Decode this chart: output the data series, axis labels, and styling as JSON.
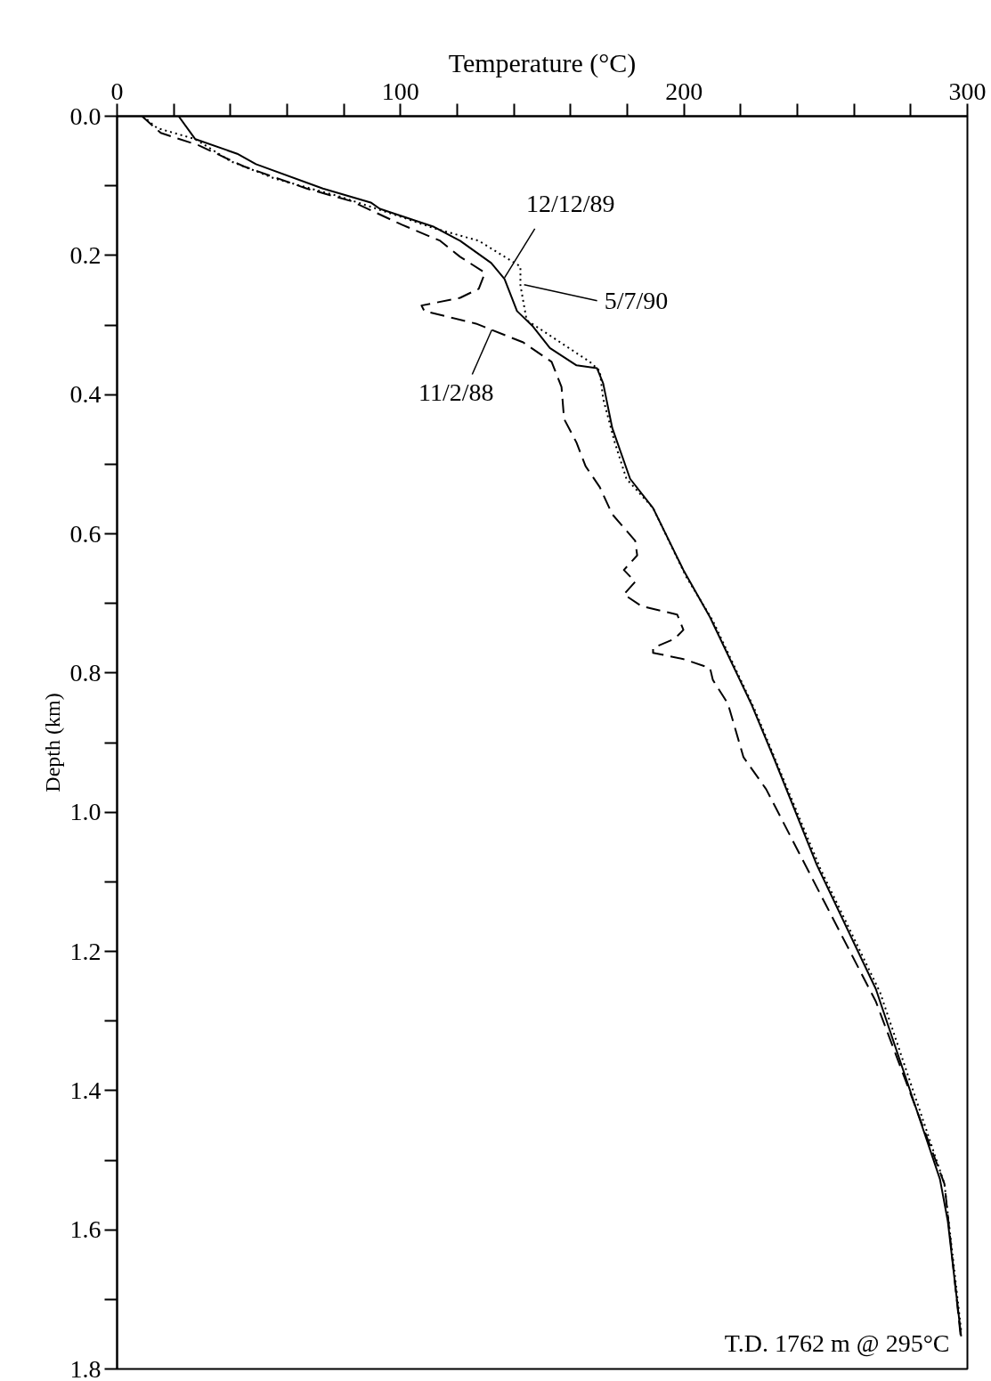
{
  "chart_data": {
    "type": "line",
    "xlabel": "Temperature (°C)",
    "ylabel": "Depth (km)",
    "xlim": [
      0,
      300
    ],
    "ylim": [
      1.8,
      0.0
    ],
    "xticks": [
      0,
      {
        "value": 20,
        "label": null
      },
      {
        "value": 40,
        "label": null
      },
      {
        "value": 60,
        "label": null
      },
      {
        "value": 80,
        "label": null
      },
      100,
      {
        "value": 120,
        "label": null
      },
      {
        "value": 140,
        "label": null
      },
      {
        "value": 160,
        "label": null
      },
      {
        "value": 180,
        "label": null
      },
      200,
      {
        "value": 220,
        "label": null
      },
      {
        "value": 240,
        "label": null
      },
      {
        "value": 260,
        "label": null
      },
      {
        "value": 280,
        "label": null
      },
      300
    ],
    "yticks": [
      {
        "value": 0.0,
        "label": "0.0"
      },
      {
        "value": 0.1,
        "label": null
      },
      0.2,
      {
        "value": 0.3,
        "label": null
      },
      0.4,
      {
        "value": 0.5,
        "label": null
      },
      0.6,
      {
        "value": 0.7,
        "label": null
      },
      0.8,
      {
        "value": 0.9,
        "label": null
      },
      {
        "value": 1.0,
        "label": "1.0"
      },
      {
        "value": 1.1,
        "label": null
      },
      1.2,
      {
        "value": 1.3,
        "label": null
      },
      1.4,
      {
        "value": 1.5,
        "label": null
      },
      1.6,
      {
        "value": 1.7,
        "label": null
      },
      1.8
    ],
    "series": [
      {
        "color": "#000000",
        "line_style": "solid",
        "x": [
          21.7,
          27.6,
          42.4,
          49.0,
          72.6,
          89.5,
          92.7,
          111.8,
          121.0,
          132.0,
          136.7,
          141.1,
          146.7,
          152.7,
          162.1,
          169.3,
          171.5,
          174.7,
          181.0,
          189.1,
          199.8,
          209.2,
          223.7,
          231.9,
          246.9,
          267.7,
          290.3,
          293.1,
          297.8
        ],
        "values": [
          0.0,
          0.033,
          0.054,
          0.069,
          0.104,
          0.124,
          0.133,
          0.159,
          0.179,
          0.211,
          0.234,
          0.28,
          0.302,
          0.333,
          0.358,
          0.362,
          0.384,
          0.448,
          0.521,
          0.563,
          0.652,
          0.72,
          0.844,
          0.924,
          1.076,
          1.254,
          1.527,
          1.588,
          1.753
        ]
      },
      {
        "color": "#000000",
        "line_style": "dotted",
        "x": [
          9.1,
          14.1,
          27.6,
          40.2,
          55.9,
          78.2,
          100.5,
          111.8,
          127.6,
          142.3,
          142.3,
          144.5,
          166.8,
          170.3,
          171.5,
          175.6,
          179.7,
          189.1,
          200.7,
          210.2,
          225.0,
          248.2,
          269.2,
          291.9,
          297.8
        ],
        "values": [
          0.0,
          0.017,
          0.033,
          0.065,
          0.09,
          0.115,
          0.145,
          0.161,
          0.179,
          0.216,
          0.243,
          0.293,
          0.353,
          0.366,
          0.406,
          0.469,
          0.521,
          0.563,
          0.661,
          0.725,
          0.853,
          1.082,
          1.259,
          1.534,
          1.745
        ]
      },
      {
        "color": "#000000",
        "line_style": "dashed",
        "x": [
          8.8,
          15.4,
          28.9,
          44.6,
          66.9,
          82.6,
          100.5,
          114.0,
          121.0,
          129.8,
          127.6,
          121.0,
          107.4,
          108.4,
          126.6,
          143.3,
          153.3,
          156.8,
          157.7,
          162.1,
          165.3,
          170.3,
          174.7,
          182.8,
          183.5,
          178.8,
          182.8,
          178.8,
          185.0,
          197.6,
          199.8,
          196.7,
          189.1,
          189.1,
          199.8,
          209.2,
          210.2,
          215.5,
          221.0,
          229.0,
          249.8,
          267.7,
          291.9,
          297.8
        ],
        "values": [
          0.0,
          0.024,
          0.042,
          0.072,
          0.104,
          0.122,
          0.156,
          0.179,
          0.202,
          0.225,
          0.248,
          0.261,
          0.272,
          0.28,
          0.298,
          0.325,
          0.353,
          0.389,
          0.435,
          0.469,
          0.503,
          0.533,
          0.572,
          0.61,
          0.631,
          0.652,
          0.669,
          0.687,
          0.704,
          0.716,
          0.738,
          0.751,
          0.764,
          0.771,
          0.78,
          0.793,
          0.81,
          0.844,
          0.921,
          0.967,
          1.131,
          1.272,
          1.534,
          1.76
        ]
      }
    ],
    "annotations": [
      {
        "text": "12/12/89",
        "x": 136.7,
        "y": 0.232
      },
      {
        "text": "5/7/90",
        "x": 143.6,
        "y": 0.242
      },
      {
        "text": "11/2/88",
        "x": 132.2,
        "y": 0.307
      },
      "T.D. 1762 m @ 295°C"
    ]
  }
}
